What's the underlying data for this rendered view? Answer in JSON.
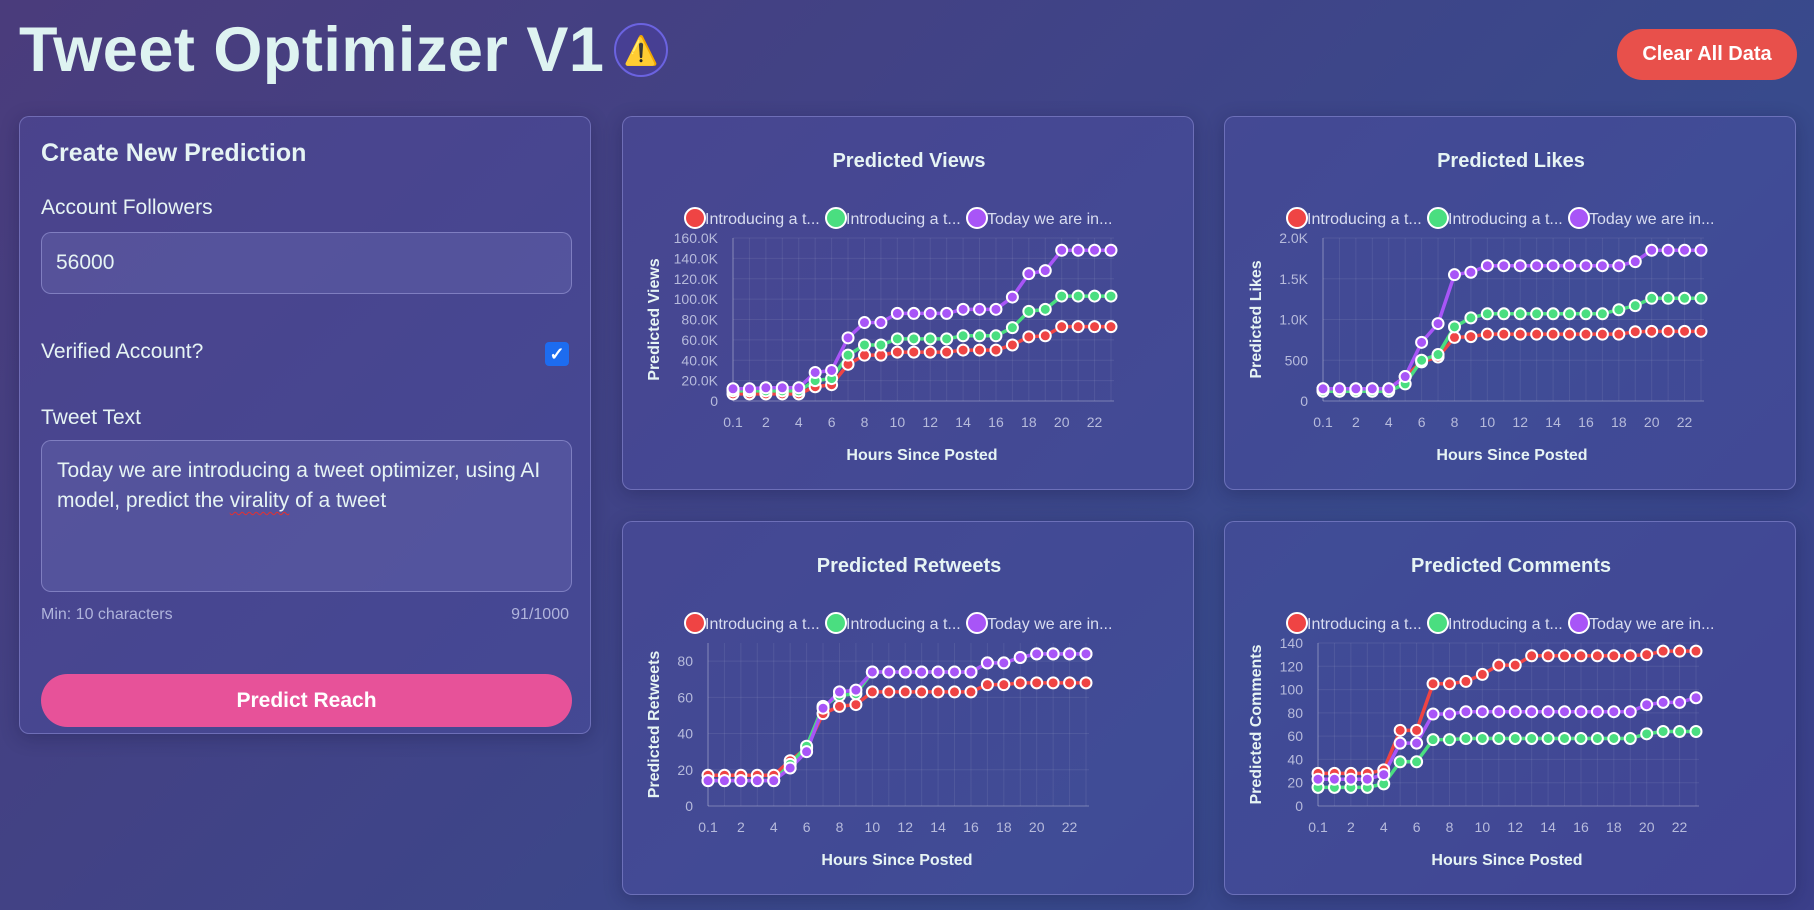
{
  "header": {
    "title": "Tweet Optimizer V1",
    "warning_icon": "⚠️",
    "clear_button": "Clear All Data"
  },
  "form": {
    "heading": "Create New Prediction",
    "followers_label": "Account Followers",
    "followers_value": "56000",
    "verified_label": "Verified Account?",
    "verified_checked": true,
    "tweet_label": "Tweet Text",
    "tweet_text_before": "Today we are introducing a tweet optimizer, using AI model, predict the ",
    "tweet_text_misspelled": "virality",
    "tweet_text_after": " of a tweet",
    "min_hint": "Min: 10 characters",
    "char_count": "91/1000",
    "predict_button": "Predict Reach"
  },
  "colors": {
    "series": [
      "#ef4444",
      "#4ade80",
      "#a855f7"
    ],
    "accent_button": "#e75299",
    "clear_button": "#e8504b"
  },
  "chart_data": [
    {
      "type": "line",
      "title": "Predicted Views",
      "xlabel": "Hours Since Posted",
      "ylabel": "Predicted Views",
      "categories": [
        "0.1",
        "1",
        "2",
        "3",
        "4",
        "5",
        "6",
        "7",
        "8",
        "9",
        "10",
        "11",
        "12",
        "13",
        "14",
        "15",
        "16",
        "17",
        "18",
        "19",
        "20",
        "21",
        "22",
        "23"
      ],
      "x_tick_labels": [
        "0.1",
        "2",
        "4",
        "6",
        "8",
        "10",
        "12",
        "14",
        "16",
        "18",
        "20",
        "22"
      ],
      "y_ticks": [
        0,
        20000,
        40000,
        60000,
        80000,
        100000,
        120000,
        140000,
        160000
      ],
      "y_tick_labels": [
        "0",
        "20.0K",
        "40.0K",
        "60.0K",
        "80.0K",
        "100.0K",
        "120.0K",
        "140.0K",
        "160.0K"
      ],
      "ylim": [
        0,
        160000
      ],
      "grid": true,
      "legend": "top",
      "series": [
        {
          "name": "Introducing a t...",
          "values": [
            7000,
            7000,
            7000,
            7000,
            7000,
            14000,
            16000,
            36000,
            45000,
            45000,
            48000,
            48000,
            48000,
            48000,
            50000,
            50000,
            50000,
            55000,
            63000,
            64000,
            73000,
            73000,
            73000,
            73000
          ]
        },
        {
          "name": "Introducing a t...",
          "values": [
            10000,
            10000,
            10000,
            10000,
            10000,
            20000,
            22000,
            45000,
            55000,
            55000,
            61000,
            61000,
            61000,
            61000,
            64000,
            64000,
            64000,
            72000,
            88000,
            90000,
            103000,
            103000,
            103000,
            103000
          ]
        },
        {
          "name": "Today we are in...",
          "values": [
            12000,
            12000,
            13000,
            13000,
            13000,
            28000,
            30000,
            62000,
            77000,
            77000,
            86000,
            86000,
            86000,
            86000,
            90000,
            90000,
            90000,
            102000,
            125000,
            128000,
            148000,
            148000,
            148000,
            148000
          ]
        }
      ]
    },
    {
      "type": "line",
      "title": "Predicted Likes",
      "xlabel": "Hours Since Posted",
      "ylabel": "Predicted Likes",
      "categories": [
        "0.1",
        "1",
        "2",
        "3",
        "4",
        "5",
        "6",
        "7",
        "8",
        "9",
        "10",
        "11",
        "12",
        "13",
        "14",
        "15",
        "16",
        "17",
        "18",
        "19",
        "20",
        "21",
        "22",
        "23"
      ],
      "x_tick_labels": [
        "0.1",
        "2",
        "4",
        "6",
        "8",
        "10",
        "12",
        "14",
        "16",
        "18",
        "20",
        "22"
      ],
      "y_ticks": [
        0,
        500,
        1000,
        1500,
        2000
      ],
      "y_tick_labels": [
        "0",
        "500",
        "1.0K",
        "1.5K",
        "2.0K"
      ],
      "ylim": [
        0,
        2000
      ],
      "grid": true,
      "legend": "top",
      "series": [
        {
          "name": "Introducing a t...",
          "values": [
            150,
            150,
            150,
            150,
            150,
            300,
            480,
            540,
            780,
            790,
            820,
            820,
            820,
            820,
            820,
            820,
            820,
            820,
            820,
            850,
            855,
            855,
            855,
            855
          ]
        },
        {
          "name": "Introducing a t...",
          "values": [
            120,
            120,
            120,
            120,
            120,
            210,
            500,
            570,
            910,
            1020,
            1070,
            1070,
            1070,
            1070,
            1070,
            1070,
            1070,
            1070,
            1120,
            1170,
            1260,
            1260,
            1260,
            1260
          ]
        },
        {
          "name": "Today we are in...",
          "values": [
            150,
            150,
            150,
            150,
            150,
            300,
            720,
            950,
            1550,
            1580,
            1660,
            1660,
            1660,
            1660,
            1660,
            1660,
            1660,
            1660,
            1660,
            1710,
            1850,
            1850,
            1850,
            1850
          ]
        }
      ]
    },
    {
      "type": "line",
      "title": "Predicted Retweets",
      "xlabel": "Hours Since Posted",
      "ylabel": "Predicted Retweets",
      "categories": [
        "0.1",
        "1",
        "2",
        "3",
        "4",
        "5",
        "6",
        "7",
        "8",
        "9",
        "10",
        "11",
        "12",
        "13",
        "14",
        "15",
        "16",
        "17",
        "18",
        "19",
        "20",
        "21",
        "22",
        "23"
      ],
      "x_tick_labels": [
        "0.1",
        "2",
        "4",
        "6",
        "8",
        "10",
        "12",
        "14",
        "16",
        "18",
        "20",
        "22"
      ],
      "y_ticks": [
        0,
        20,
        40,
        60,
        80
      ],
      "y_tick_labels": [
        "0",
        "20",
        "40",
        "60",
        "80"
      ],
      "ylim": [
        0,
        90
      ],
      "grid": true,
      "legend": "top",
      "series": [
        {
          "name": "Introducing a t...",
          "values": [
            17,
            17,
            17,
            17,
            17,
            25,
            32,
            51,
            55,
            56,
            63,
            63,
            63,
            63,
            63,
            63,
            63,
            67,
            67,
            68,
            68,
            68,
            68,
            68
          ]
        },
        {
          "name": "Introducing a t...",
          "values": [
            14,
            14,
            14,
            14,
            14,
            23,
            33,
            55,
            61,
            62,
            74,
            74,
            74,
            74,
            74,
            74,
            74,
            79,
            79,
            82,
            84,
            84,
            84,
            84
          ]
        },
        {
          "name": "Today we are in...",
          "values": [
            14,
            14,
            14,
            14,
            14,
            21,
            30,
            54,
            63,
            64,
            74,
            74,
            74,
            74,
            74,
            74,
            74,
            79,
            79,
            82,
            84,
            84,
            84,
            84
          ]
        }
      ]
    },
    {
      "type": "line",
      "title": "Predicted Comments",
      "xlabel": "Hours Since Posted",
      "ylabel": "Predicted Comments",
      "categories": [
        "0.1",
        "1",
        "2",
        "3",
        "4",
        "5",
        "6",
        "7",
        "8",
        "9",
        "10",
        "11",
        "12",
        "13",
        "14",
        "15",
        "16",
        "17",
        "18",
        "19",
        "20",
        "21",
        "22",
        "23"
      ],
      "x_tick_labels": [
        "0.1",
        "2",
        "4",
        "6",
        "8",
        "10",
        "12",
        "14",
        "16",
        "18",
        "20",
        "22"
      ],
      "y_ticks": [
        0,
        20,
        40,
        60,
        80,
        100,
        120,
        140
      ],
      "y_tick_labels": [
        "0",
        "20",
        "40",
        "60",
        "80",
        "100",
        "120",
        "140"
      ],
      "ylim": [
        0,
        140
      ],
      "grid": true,
      "legend": "top",
      "series": [
        {
          "name": "Introducing a t...",
          "values": [
            28,
            28,
            28,
            28,
            31,
            65,
            65,
            105,
            105,
            107,
            113,
            121,
            121,
            129,
            129,
            129,
            129,
            129,
            129,
            129,
            130,
            133,
            133,
            133
          ]
        },
        {
          "name": "Introducing a t...",
          "values": [
            16,
            16,
            16,
            16,
            19,
            38,
            38,
            57,
            57,
            58,
            58,
            58,
            58,
            58,
            58,
            58,
            58,
            58,
            58,
            58,
            62,
            64,
            64,
            64
          ]
        },
        {
          "name": "Today we are in...",
          "values": [
            23,
            23,
            23,
            23,
            27,
            54,
            54,
            79,
            79,
            81,
            81,
            81,
            81,
            81,
            81,
            81,
            81,
            81,
            81,
            81,
            87,
            89,
            89,
            93
          ]
        }
      ]
    }
  ]
}
